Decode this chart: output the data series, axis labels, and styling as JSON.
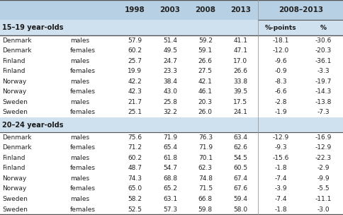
{
  "section1_header": "15–19 year-olds",
  "section2_header": "20–24 year-olds",
  "year_cols": [
    "1998",
    "2003",
    "2008",
    "2013"
  ],
  "change_header": "2008–2013",
  "change_subcols": [
    "%-points",
    "%"
  ],
  "rows_section1": [
    [
      "Denmark",
      "males",
      "57.9",
      "51.4",
      "59.2",
      "41.1",
      "-18.1",
      "-30.6"
    ],
    [
      "Denmark",
      "females",
      "60.2",
      "49.5",
      "59.1",
      "47.1",
      "-12.0",
      "-20.3"
    ],
    [
      "Finland",
      "males",
      "25.7",
      "24.7",
      "26.6",
      "17.0",
      "-9.6",
      "-36.1"
    ],
    [
      "Finland",
      "females",
      "19.9",
      "23.3",
      "27.5",
      "26.6",
      "-0.9",
      "-3.3"
    ],
    [
      "Norway",
      "males",
      "42.2",
      "38.4",
      "42.1",
      "33.8",
      "-8.3",
      "-19.7"
    ],
    [
      "Norway",
      "females",
      "42.3",
      "43.0",
      "46.1",
      "39.5",
      "-6.6",
      "-14.3"
    ],
    [
      "Sweden",
      "males",
      "21.7",
      "25.8",
      "20.3",
      "17.5",
      "-2.8",
      "-13.8"
    ],
    [
      "Sweden",
      "females",
      "25.1",
      "32.2",
      "26.0",
      "24.1",
      "-1.9",
      "-7.3"
    ]
  ],
  "rows_section2": [
    [
      "Denmark",
      "males",
      "75.6",
      "71.9",
      "76.3",
      "63.4",
      "-12.9",
      "-16.9"
    ],
    [
      "Denmark",
      "females",
      "71.2",
      "65.4",
      "71.9",
      "62.6",
      "-9.3",
      "-12.9"
    ],
    [
      "Finland",
      "males",
      "60.2",
      "61.8",
      "70.1",
      "54.5",
      "-15.6",
      "-22.3"
    ],
    [
      "Finland",
      "females",
      "48.7",
      "54.7",
      "62.3",
      "60.5",
      "-1.8",
      "-2.9"
    ],
    [
      "Norway",
      "males",
      "74.3",
      "68.8",
      "74.8",
      "67.4",
      "-7.4",
      "-9.9"
    ],
    [
      "Norway",
      "females",
      "65.0",
      "65.2",
      "71.5",
      "67.6",
      "-3.9",
      "-5.5"
    ],
    [
      "Sweden",
      "males",
      "58.2",
      "63.1",
      "66.8",
      "59.4",
      "-7.4",
      "-11.1"
    ],
    [
      "Sweden",
      "females",
      "52.5",
      "57.3",
      "59.8",
      "58.0",
      "-1.8",
      "-3.0"
    ]
  ],
  "header_bg": "#b8d0e3",
  "section_bg": "#cfe0ee",
  "white": "#ffffff",
  "border_color": "#999999",
  "dark_border": "#555555"
}
